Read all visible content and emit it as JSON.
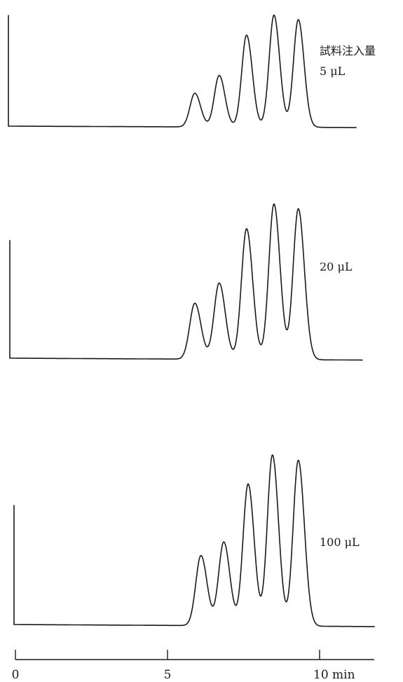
{
  "chart_data": {
    "type": "line",
    "description_kind": "stacked chromatograms",
    "xlabel": "",
    "x_unit": "min",
    "xlim": [
      0,
      11.8
    ],
    "x_ticks": [
      {
        "value": 0,
        "label": "0"
      },
      {
        "value": 5,
        "label": "5"
      },
      {
        "value": 10,
        "label": "10 min"
      }
    ],
    "legend_header": "試料注入量",
    "series": [
      {
        "name": "5 μL",
        "baseline_start": -0.35,
        "baseline_end": 11.2,
        "peaks": [
          {
            "rt": 5.9,
            "height": 0.3,
            "width": 0.16
          },
          {
            "rt": 6.7,
            "height": 0.46,
            "width": 0.16
          },
          {
            "rt": 7.6,
            "height": 0.82,
            "width": 0.16
          },
          {
            "rt": 8.5,
            "height": 1.0,
            "width": 0.16
          },
          {
            "rt": 9.3,
            "height": 0.96,
            "width": 0.16
          }
        ]
      },
      {
        "name": "20 μL",
        "baseline_start": -0.35,
        "baseline_end": 11.4,
        "peaks": [
          {
            "rt": 5.9,
            "height": 0.36,
            "width": 0.17
          },
          {
            "rt": 6.7,
            "height": 0.49,
            "width": 0.17
          },
          {
            "rt": 7.6,
            "height": 0.84,
            "width": 0.17
          },
          {
            "rt": 8.5,
            "height": 1.0,
            "width": 0.17
          },
          {
            "rt": 9.3,
            "height": 0.97,
            "width": 0.17
          }
        ]
      },
      {
        "name": "100 μL",
        "baseline_start": -0.2,
        "baseline_end": 11.8,
        "peaks": [
          {
            "rt": 6.1,
            "height": 0.41,
            "width": 0.17
          },
          {
            "rt": 6.85,
            "height": 0.49,
            "width": 0.17
          },
          {
            "rt": 7.65,
            "height": 0.83,
            "width": 0.17
          },
          {
            "rt": 8.45,
            "height": 1.0,
            "width": 0.17
          },
          {
            "rt": 9.3,
            "height": 0.97,
            "width": 0.17
          }
        ]
      }
    ]
  }
}
